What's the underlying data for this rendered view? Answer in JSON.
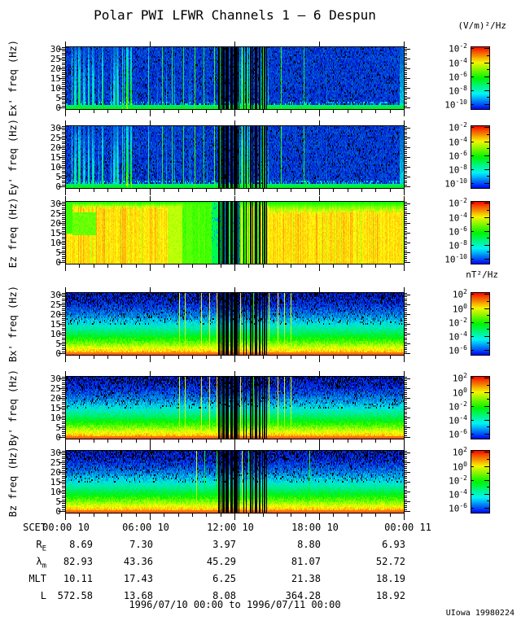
{
  "chart_data": {
    "type": "heatmap",
    "subtype": "spectrogram",
    "title": "Polar PWI LFWR Channels 1 — 6 Despun",
    "x_axis": {
      "label": "SCET",
      "tick_labels": [
        "00:00 10",
        "06:00 10",
        "12:00 10",
        "18:00 10",
        "00:00 11"
      ],
      "range_hours": 24,
      "minor_ticks_per_hour": 1
    },
    "y_axis": {
      "ticks": [
        0,
        5,
        10,
        15,
        20,
        25,
        30
      ],
      "range": [
        0,
        32
      ],
      "units": "Hz"
    },
    "panels": [
      {
        "name": "Ex",
        "ylabel": "Ex' freq (Hz)",
        "style": "e",
        "colorbar": "e"
      },
      {
        "name": "Ey",
        "ylabel": "Ey' freq (Hz)",
        "style": "e",
        "colorbar": "e"
      },
      {
        "name": "Ez",
        "ylabel": "Ez freq (Hz)",
        "style": "ez",
        "colorbar": "e"
      },
      {
        "name": "Bx",
        "ylabel": "Bx' freq (Hz)",
        "style": "b",
        "colorbar": "b"
      },
      {
        "name": "By",
        "ylabel": "By' freq (Hz)",
        "style": "b",
        "colorbar": "b"
      },
      {
        "name": "Bz",
        "ylabel": "Bz freq (Hz)",
        "style": "b2",
        "colorbar": "b"
      }
    ],
    "colorbars": {
      "e": {
        "title": "(V/m)²/Hz",
        "exponents": [
          "-2",
          "-4",
          "-6",
          "-8",
          "-10"
        ]
      },
      "b": {
        "title": "nT²/Hz",
        "exponents": [
          "2",
          "0",
          "-2",
          "-4",
          "-6"
        ]
      }
    },
    "features": {
      "data_gap_bars": [
        [
          0.452,
          2
        ],
        [
          0.459,
          1
        ],
        [
          0.464,
          2
        ],
        [
          0.469,
          1
        ],
        [
          0.474,
          3
        ],
        [
          0.481,
          1
        ],
        [
          0.487,
          2
        ],
        [
          0.493,
          1
        ],
        [
          0.498,
          4
        ],
        [
          0.506,
          2
        ],
        [
          0.512,
          1
        ],
        [
          0.526,
          1
        ],
        [
          0.534,
          1
        ],
        [
          0.546,
          2
        ],
        [
          0.553,
          1
        ],
        [
          0.559,
          3
        ],
        [
          0.566,
          1
        ],
        [
          0.573,
          2
        ],
        [
          0.581,
          1
        ],
        [
          0.587,
          2
        ],
        [
          0.593,
          1
        ]
      ],
      "e_green_lines": [
        0.285,
        0.315,
        0.347,
        0.382,
        0.408,
        0.44,
        0.455,
        0.521,
        0.582,
        0.636,
        0.703
      ],
      "b_lines": [
        0.335,
        0.352,
        0.38,
        0.4,
        0.425,
        0.445,
        0.47,
        0.49,
        0.515,
        0.53,
        0.555,
        0.575,
        0.6,
        0.625,
        0.645,
        0.665
      ],
      "bz_lines": [
        0.36,
        0.385,
        0.41,
        0.425,
        0.445,
        0.465,
        0.52,
        0.54,
        0.56,
        0.72,
        0.745
      ]
    }
  },
  "ephemeris": {
    "rows": [
      {
        "label": "SCET",
        "sub": "",
        "type": "time",
        "values": [
          "00:00 10",
          "06:00 10",
          "12:00 10",
          "18:00 10",
          "00:00 11"
        ]
      },
      {
        "label": "R",
        "sub": "E",
        "type": "num",
        "values": [
          "8.69",
          "7.30",
          "3.97",
          "8.80",
          "6.93"
        ]
      },
      {
        "label": "λ",
        "sub": "m",
        "type": "num",
        "values": [
          "82.93",
          "43.36",
          "45.29",
          "81.07",
          "52.72"
        ]
      },
      {
        "label": "MLT",
        "sub": "",
        "type": "num",
        "values": [
          "10.11",
          "17.43",
          "6.25",
          "21.38",
          "18.19"
        ]
      },
      {
        "label": "L",
        "sub": "",
        "type": "num",
        "values": [
          "572.58",
          "13.68",
          "8.08",
          "364.28",
          "18.92"
        ]
      }
    ]
  },
  "footer": {
    "date_range": "1996/07/10 00:00 to 1996/07/11 00:00",
    "credit": "UIowa 19980224"
  }
}
